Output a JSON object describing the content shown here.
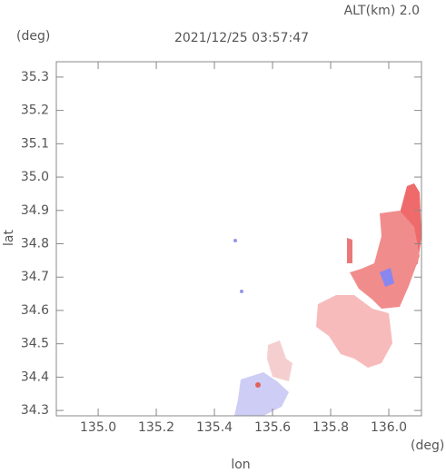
{
  "chart_data": {
    "type": "map",
    "annotation": "ALT(km) 2.0",
    "title": "2021/12/25 03:57:47",
    "y_unit": "(deg)",
    "x_unit": "(deg)",
    "xlabel": "lon",
    "ylabel": "lat",
    "xlim": [
      134.856,
      136.1125
    ],
    "ylim": [
      34.284,
      35.346
    ],
    "xticks": [
      {
        "value": 135,
        "label": "135.0"
      },
      135.2,
      135.4,
      135.6,
      135.8,
      {
        "value": 136,
        "label": "136.0"
      }
    ],
    "yticks": [
      34.3,
      34.4,
      34.5,
      34.6,
      34.7,
      34.8,
      34.9,
      {
        "value": 35,
        "label": "35.0"
      },
      35.1,
      35.2,
      35.3
    ]
  }
}
